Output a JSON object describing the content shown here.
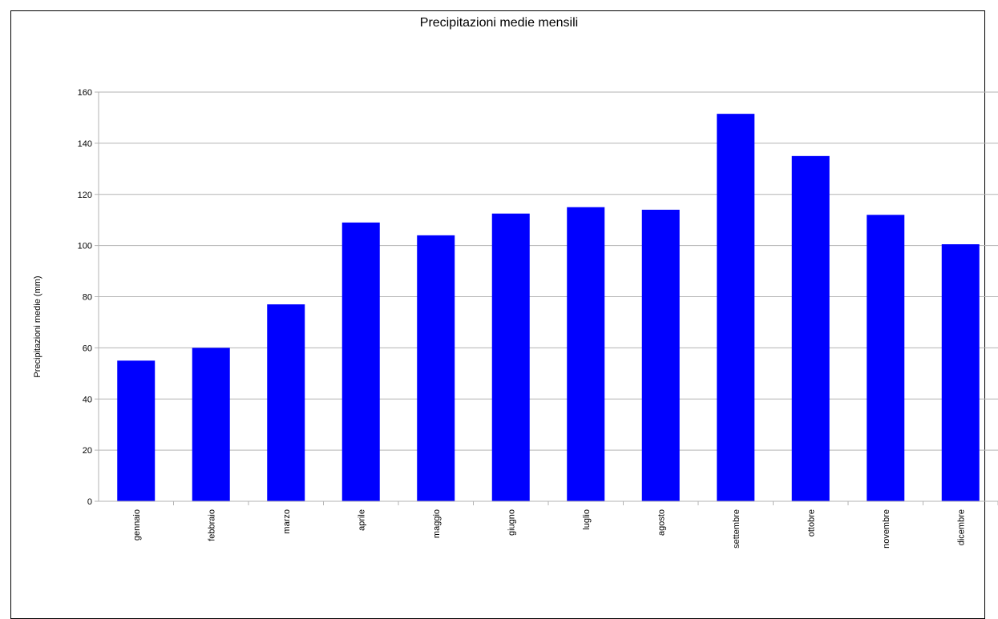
{
  "chart_data": {
    "type": "bar",
    "title": "Precipitazioni medie mensili",
    "xlabel": "",
    "ylabel": "Precipitazioni medie (mm)",
    "categories": [
      "gennaio",
      "febbraio",
      "marzo",
      "aprile",
      "maggio",
      "giugno",
      "luglio",
      "agosto",
      "settembre",
      "ottobre",
      "novembre",
      "dicembre"
    ],
    "values": [
      55,
      60,
      77,
      109,
      104,
      112.5,
      115,
      114,
      151.5,
      135,
      112,
      100.5
    ],
    "ylim": [
      0,
      160
    ],
    "yticks": [
      0,
      20,
      40,
      60,
      80,
      100,
      120,
      140,
      160
    ],
    "grid": true,
    "legend": "none",
    "bar_color": "#0000ff",
    "grid_color": "#b3b3b3"
  }
}
